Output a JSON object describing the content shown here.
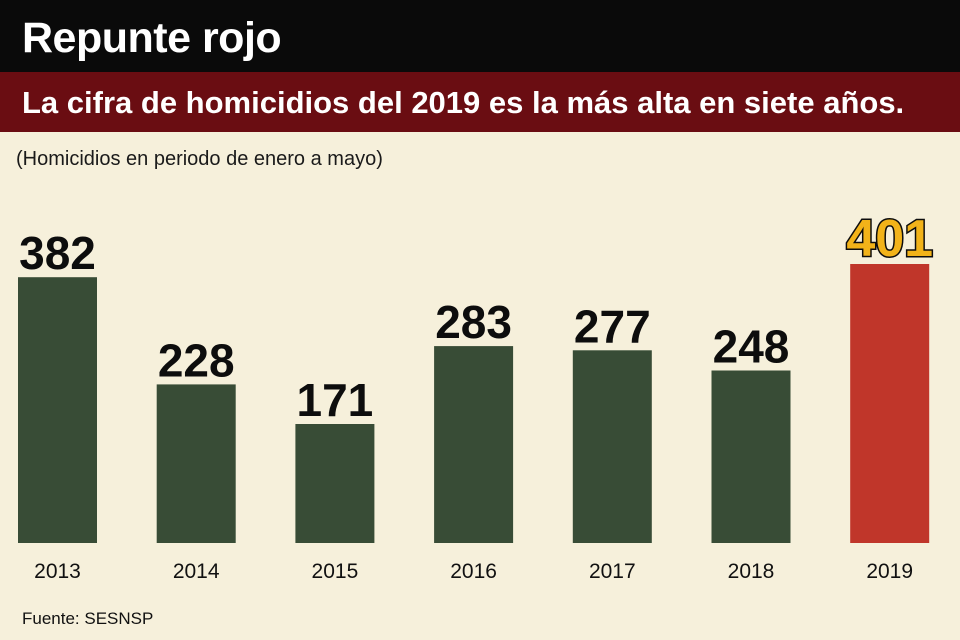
{
  "header": {
    "title": "Repunte rojo",
    "subtitle": "La cifra de homicidios del 2019 es la más alta en siete años."
  },
  "note": "(Homicidios en periodo de enero a mayo)",
  "source": "Fuente: SESNSP",
  "colors": {
    "bar": "#384c36",
    "highlight_bar": "#c0362a",
    "highlight_label": "#f2b319",
    "background": "#f6f0db",
    "header_top": "#0a0a0a",
    "header_sub": "#6a0d12"
  },
  "chart_data": {
    "type": "bar",
    "title": "Repunte rojo",
    "subtitle": "La cifra de homicidios del 2019 es la más alta en siete años.",
    "xlabel": "",
    "ylabel": "",
    "categories": [
      "2013",
      "2014",
      "2015",
      "2016",
      "2017",
      "2018",
      "2019"
    ],
    "values": [
      382,
      228,
      171,
      283,
      277,
      248,
      401
    ],
    "highlight_category": "2019",
    "ylim": [
      0,
      401
    ],
    "grid": false,
    "legend": "none"
  }
}
